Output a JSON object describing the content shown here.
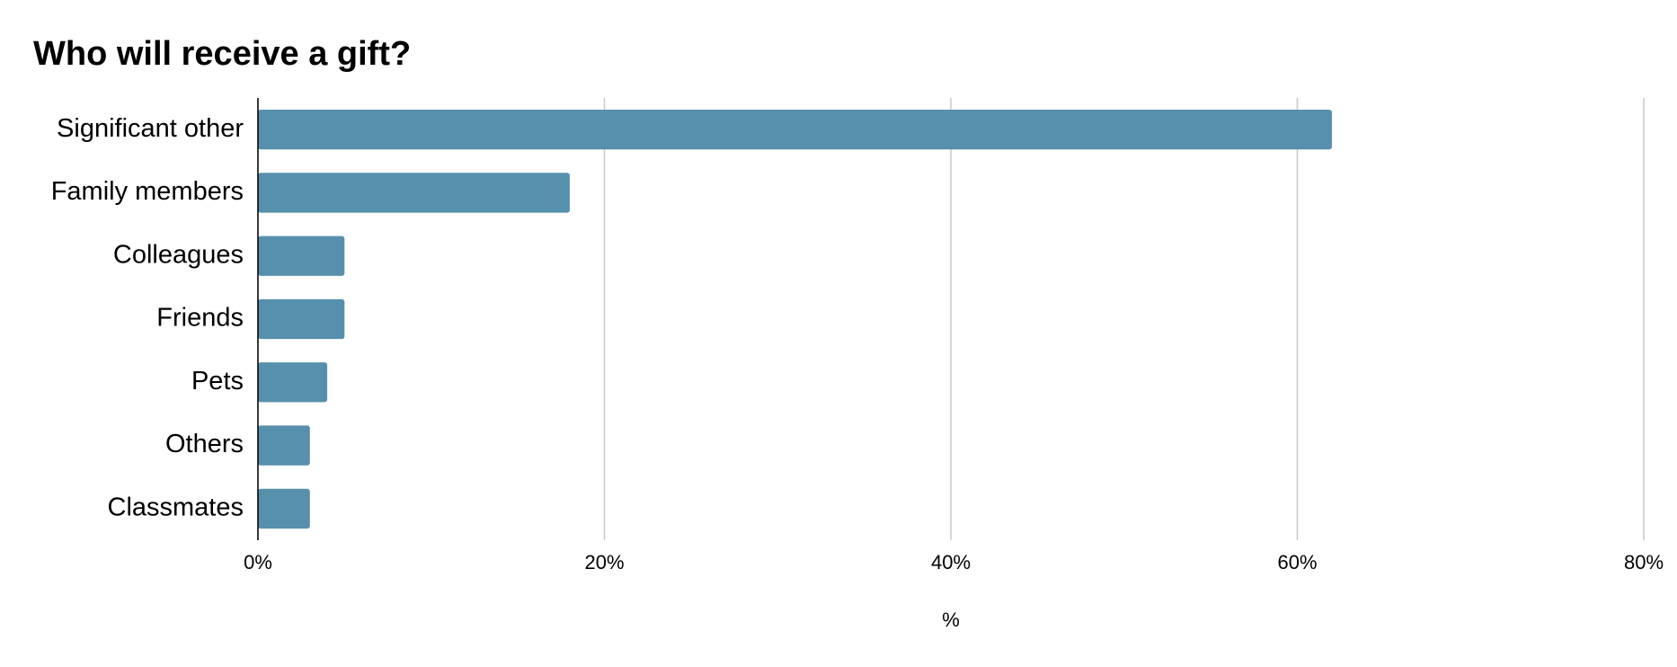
{
  "chart_data": {
    "type": "bar",
    "orientation": "horizontal",
    "title": "Who will receive a gift?",
    "categories": [
      "Significant other",
      "Family members",
      "Colleagues",
      "Friends",
      "Pets",
      "Others",
      "Classmates"
    ],
    "values": [
      62,
      18,
      5,
      5,
      4,
      3,
      3
    ],
    "color": "#5790ad",
    "x_label": "%",
    "xlim": [
      0,
      80
    ],
    "xticks": [
      {
        "value": 0,
        "label": "0%"
      },
      {
        "value": 20,
        "label": "20%"
      },
      {
        "value": 40,
        "label": "40%"
      },
      {
        "value": 60,
        "label": "60%"
      },
      {
        "value": 80,
        "label": "80%"
      }
    ],
    "grid": true
  }
}
